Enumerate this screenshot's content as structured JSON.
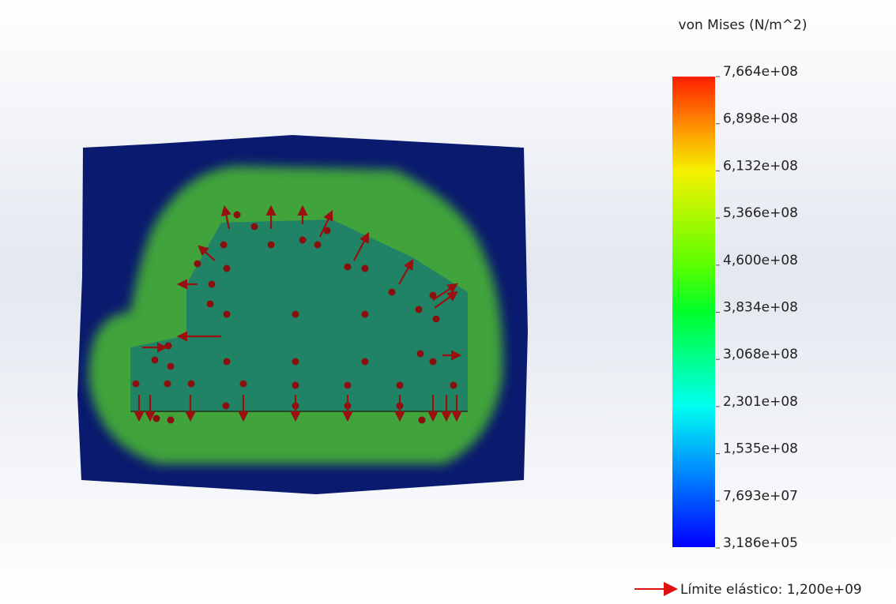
{
  "legend": {
    "title": "von Mises (N/m^2)",
    "ticks": [
      "7,664e+08",
      "6,898e+08",
      "6,132e+08",
      "5,366e+08",
      "4,600e+08",
      "3,834e+08",
      "3,068e+08",
      "2,301e+08",
      "1,535e+08",
      "7,693e+07",
      "3,186e+05"
    ]
  },
  "yield_limit": "Límite elástico: 1,200e+09"
}
